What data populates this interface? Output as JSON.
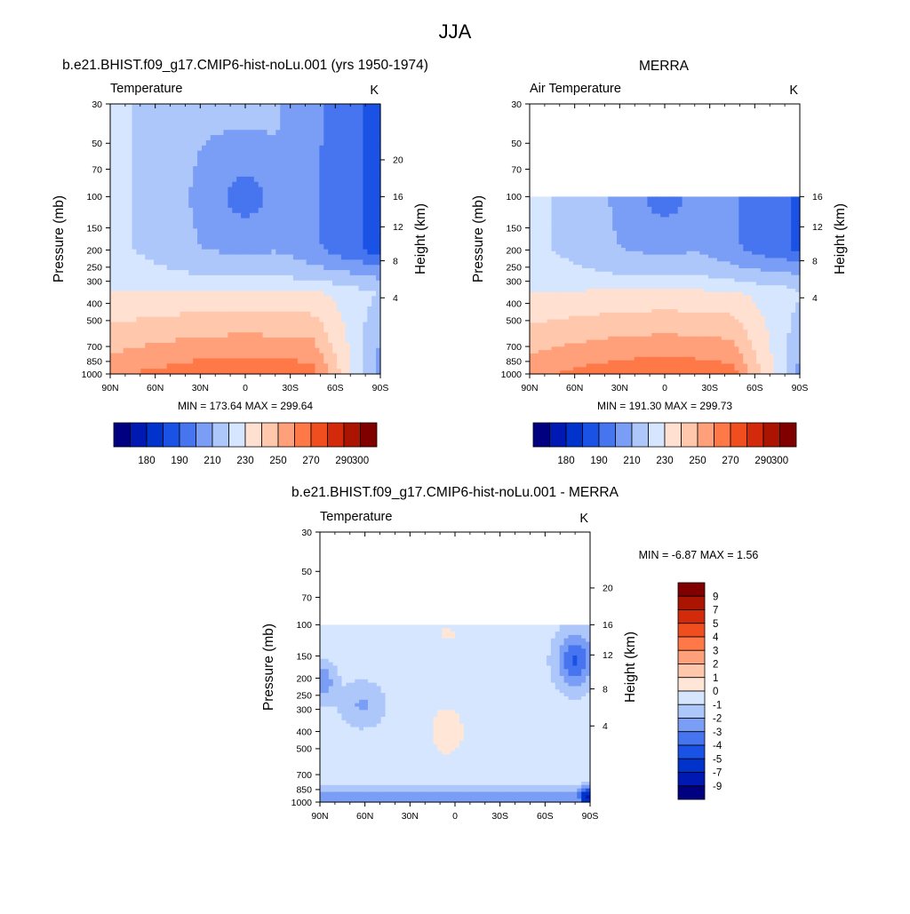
{
  "page": {
    "main_title": "JJA",
    "panel1_title": "b.e21.BHIST.f09_g17.CMIP6-hist-noLu.001 (yrs 1950-1974)",
    "panel2_title": "MERRA",
    "panel3_title": "b.e21.BHIST.f09_g17.CMIP6-hist-noLu.001 - MERRA"
  },
  "colors": {
    "temp_palette": [
      "#000080",
      "#0019b3",
      "#0033cc",
      "#1a52e6",
      "#4775f0",
      "#7a9ef5",
      "#adc7fa",
      "#d6e6ff",
      "#ffe0d1",
      "#ffc8ad",
      "#ffa07a",
      "#ff7848",
      "#f04e1e",
      "#d22a0a",
      "#aa1400",
      "#800000"
    ],
    "diff_palette": [
      "#000080",
      "#0019b3",
      "#0033cc",
      "#1a52e6",
      "#4775f0",
      "#7a9ef5",
      "#adc7fa",
      "#d6e6ff",
      "#ffe6d6",
      "#ffc8ad",
      "#ffa07a",
      "#ff7848",
      "#f04e1e",
      "#d22a0a",
      "#aa1400",
      "#800000"
    ]
  },
  "chart_data": [
    {
      "type": "heatmap",
      "title": "b.e21.BHIST.f09_g17.CMIP6-hist-noLu.001 (yrs 1950-1974)",
      "left_label": "Temperature",
      "units": "K",
      "ylabel": "Pressure (mb)",
      "ylabel_right": "Height (km)",
      "x_ticks": [
        "90N",
        "60N",
        "30N",
        "0",
        "30S",
        "60S",
        "90S"
      ],
      "y_ticks": [
        "30",
        "50",
        "70",
        "100",
        "150",
        "200",
        "250",
        "300",
        "400",
        "500",
        "700",
        "850",
        "1000"
      ],
      "height_ticks": [
        "20",
        "16",
        "12",
        "8",
        "4"
      ],
      "stats": "MIN = 173.64  MAX = 299.64",
      "colorbar_labels": [
        "180",
        "190",
        "210",
        "230",
        "250",
        "270",
        "290",
        "300"
      ],
      "levels": [
        175,
        180,
        185,
        190,
        200,
        210,
        220,
        230,
        240,
        250,
        260,
        270,
        280,
        290,
        295,
        300
      ],
      "field_note": "zonal-mean temperature, lat 90N to 90S, pressure 1000 to 30 mb",
      "data_top_mb": 30
    },
    {
      "type": "heatmap",
      "title": "MERRA",
      "left_label": "Air Temperature",
      "units": "K",
      "ylabel": "Pressure (mb)",
      "ylabel_right": "Height (km)",
      "x_ticks": [
        "90N",
        "60N",
        "30N",
        "0",
        "30S",
        "60S",
        "90S"
      ],
      "y_ticks": [
        "30",
        "50",
        "70",
        "100",
        "150",
        "200",
        "250",
        "300",
        "400",
        "500",
        "700",
        "850",
        "1000"
      ],
      "height_ticks": [
        "16",
        "12",
        "8",
        "4"
      ],
      "stats": "MIN = 191.30  MAX = 299.73",
      "colorbar_labels": [
        "180",
        "190",
        "210",
        "230",
        "250",
        "270",
        "290",
        "300"
      ],
      "levels": [
        175,
        180,
        185,
        190,
        200,
        210,
        220,
        230,
        240,
        250,
        260,
        270,
        280,
        290,
        295,
        300
      ],
      "data_top_mb": 100
    },
    {
      "type": "heatmap",
      "title": "b.e21.BHIST.f09_g17.CMIP6-hist-noLu.001 - MERRA",
      "left_label": "Temperature",
      "units": "K",
      "ylabel": "Pressure (mb)",
      "ylabel_right": "Height (km)",
      "x_ticks": [
        "90N",
        "60N",
        "30N",
        "0",
        "30S",
        "60S",
        "90S"
      ],
      "y_ticks": [
        "30",
        "50",
        "70",
        "100",
        "150",
        "200",
        "250",
        "300",
        "400",
        "500",
        "700",
        "850",
        "1000"
      ],
      "height_ticks": [
        "20",
        "16",
        "12",
        "8",
        "4"
      ],
      "stats": "MIN =  -6.87  MAX =   1.56",
      "colorbar_labels": [
        "9",
        "7",
        "5",
        "4",
        "3",
        "2",
        "1",
        "0",
        "-1",
        "-2",
        "-3",
        "-4",
        "-5",
        "-7",
        "-9"
      ],
      "levels": [
        -9,
        -7,
        -5,
        -4,
        -3,
        -2,
        -1,
        0,
        1,
        2,
        3,
        4,
        5,
        7,
        9
      ],
      "data_top_mb": 100
    }
  ]
}
